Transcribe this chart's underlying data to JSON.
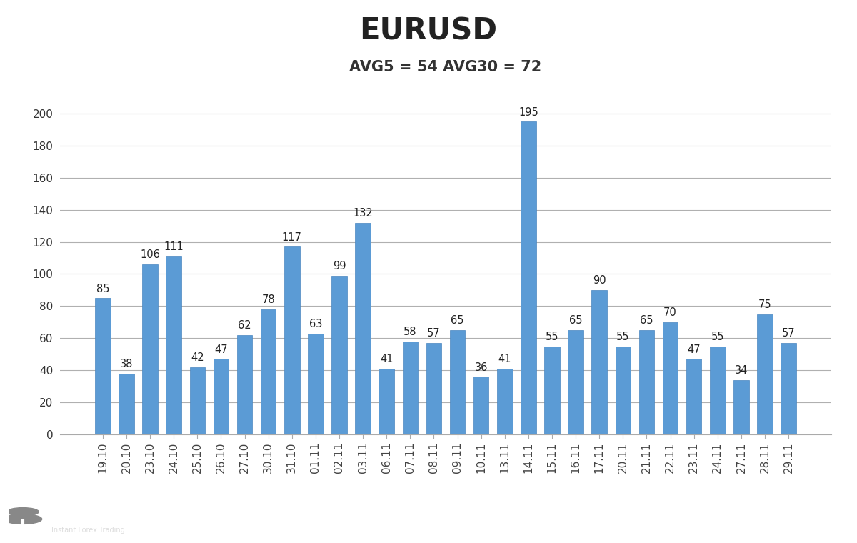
{
  "title": "EURUSD",
  "subtitle": "AVG5 = 54 AVG30 = 72",
  "categories": [
    "19.10",
    "20.10",
    "23.10",
    "24.10",
    "25.10",
    "26.10",
    "27.10",
    "30.10",
    "31.10",
    "01.11",
    "02.11",
    "03.11",
    "06.11",
    "07.11",
    "08.11",
    "09.11",
    "10.11",
    "13.11",
    "14.11",
    "15.11",
    "16.11",
    "17.11",
    "20.11",
    "21.11",
    "22.11",
    "23.11",
    "24.11",
    "27.11",
    "28.11",
    "29.11"
  ],
  "values": [
    85,
    38,
    106,
    111,
    42,
    47,
    62,
    78,
    117,
    63,
    99,
    132,
    41,
    58,
    57,
    65,
    36,
    41,
    195,
    55,
    65,
    90,
    55,
    65,
    70,
    47,
    55,
    34,
    75,
    57
  ],
  "bar_color": "#5B9BD5",
  "bar_edge_color": "#4A86C0",
  "background_color": "#FFFFFF",
  "grid_color": "#B0B0B0",
  "title_fontsize": 30,
  "subtitle_fontsize": 15,
  "label_fontsize": 10.5,
  "tick_fontsize": 11,
  "ylim": [
    0,
    220
  ],
  "yticks": [
    0,
    20,
    40,
    60,
    80,
    100,
    120,
    140,
    160,
    180,
    200
  ],
  "logo_bg_color": "#888888",
  "logo_text_color": "#FFFFFF",
  "logo_subtext_color": "#CCCCCC"
}
